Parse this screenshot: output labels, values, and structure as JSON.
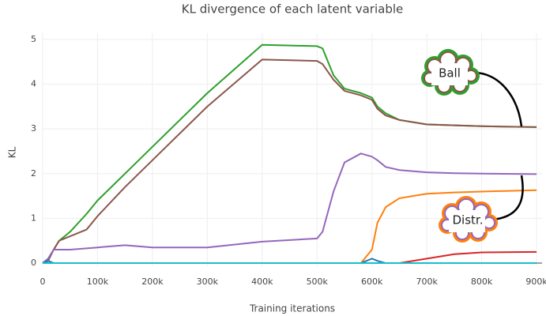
{
  "chart_data": {
    "type": "line",
    "title": "KL divergence of each latent variable",
    "x_label": "Training iterations",
    "y_label": "KL",
    "annotations": [
      "Ball",
      "Distr."
    ],
    "grid": true,
    "xlim": [
      0,
      910000
    ],
    "ylim": [
      -0.07,
      5.14
    ],
    "xticks": [
      0,
      {
        "value": 100000,
        "label": "100k"
      },
      {
        "value": 200000,
        "label": "200k"
      },
      {
        "value": 300000,
        "label": "300k"
      },
      {
        "value": 400000,
        "label": "400k"
      },
      {
        "value": 500000,
        "label": "500k"
      },
      {
        "value": 600000,
        "label": "600k"
      },
      {
        "value": 700000,
        "label": "700k"
      },
      {
        "value": 800000,
        "label": "800k"
      },
      {
        "value": 900000,
        "label": "900k"
      }
    ],
    "yticks": [
      0,
      1,
      2,
      3,
      4,
      5
    ],
    "x": [
      0,
      10000,
      20000,
      30000,
      50000,
      80000,
      100000,
      150000,
      200000,
      300000,
      400000,
      500000,
      510000,
      530000,
      550000,
      580000,
      600000,
      610000,
      625000,
      650000,
      700000,
      750000,
      800000,
      900000
    ],
    "series": [
      {
        "color": "#2ca02c",
        "values": [
          0,
          0.1,
          0.3,
          0.5,
          0.7,
          1.1,
          1.4,
          2.0,
          2.6,
          3.8,
          4.88,
          4.85,
          4.8,
          4.2,
          3.9,
          3.8,
          3.7,
          3.5,
          3.35,
          3.2,
          3.1,
          3.08,
          3.06,
          3.04
        ]
      },
      {
        "color": "#8c564b",
        "values": [
          0,
          0.05,
          0.3,
          0.5,
          0.6,
          0.75,
          1.05,
          1.7,
          2.3,
          3.5,
          4.55,
          4.52,
          4.45,
          4.1,
          3.85,
          3.75,
          3.65,
          3.45,
          3.3,
          3.2,
          3.1,
          3.08,
          3.06,
          3.04
        ]
      },
      {
        "color": "#9467bd",
        "values": [
          0,
          0.1,
          0.3,
          0.3,
          0.3,
          0.33,
          0.35,
          0.4,
          0.35,
          0.35,
          0.48,
          0.55,
          0.7,
          1.6,
          2.25,
          2.45,
          2.38,
          2.3,
          2.15,
          2.08,
          2.03,
          2.01,
          2.0,
          1.99
        ]
      },
      {
        "color": "#ff7f0e",
        "values": [
          0,
          0,
          0,
          0,
          0,
          0,
          0,
          0,
          0,
          0,
          0,
          0,
          0,
          0,
          0,
          0,
          0.3,
          0.9,
          1.25,
          1.45,
          1.55,
          1.58,
          1.6,
          1.63
        ]
      },
      {
        "color": "#d62728",
        "values": [
          0,
          0,
          0,
          0,
          0,
          0,
          0,
          0,
          0,
          0,
          0,
          0,
          0,
          0,
          0,
          0,
          0,
          0,
          0,
          0,
          0.1,
          0.2,
          0.24,
          0.25
        ]
      },
      {
        "color": "#1f77b4",
        "values": [
          0,
          0.05,
          0,
          0,
          0,
          0,
          0,
          0,
          0,
          0,
          0,
          0,
          0,
          0,
          0,
          0,
          0.1,
          0.05,
          0,
          0,
          0,
          0,
          0,
          0
        ]
      },
      {
        "color": "#17becf",
        "values": [
          0,
          0,
          0,
          0,
          0,
          0,
          0,
          0,
          0,
          0,
          0,
          0,
          0,
          0,
          0,
          0,
          0,
          0,
          0,
          0,
          0,
          0,
          0,
          0
        ]
      }
    ]
  }
}
